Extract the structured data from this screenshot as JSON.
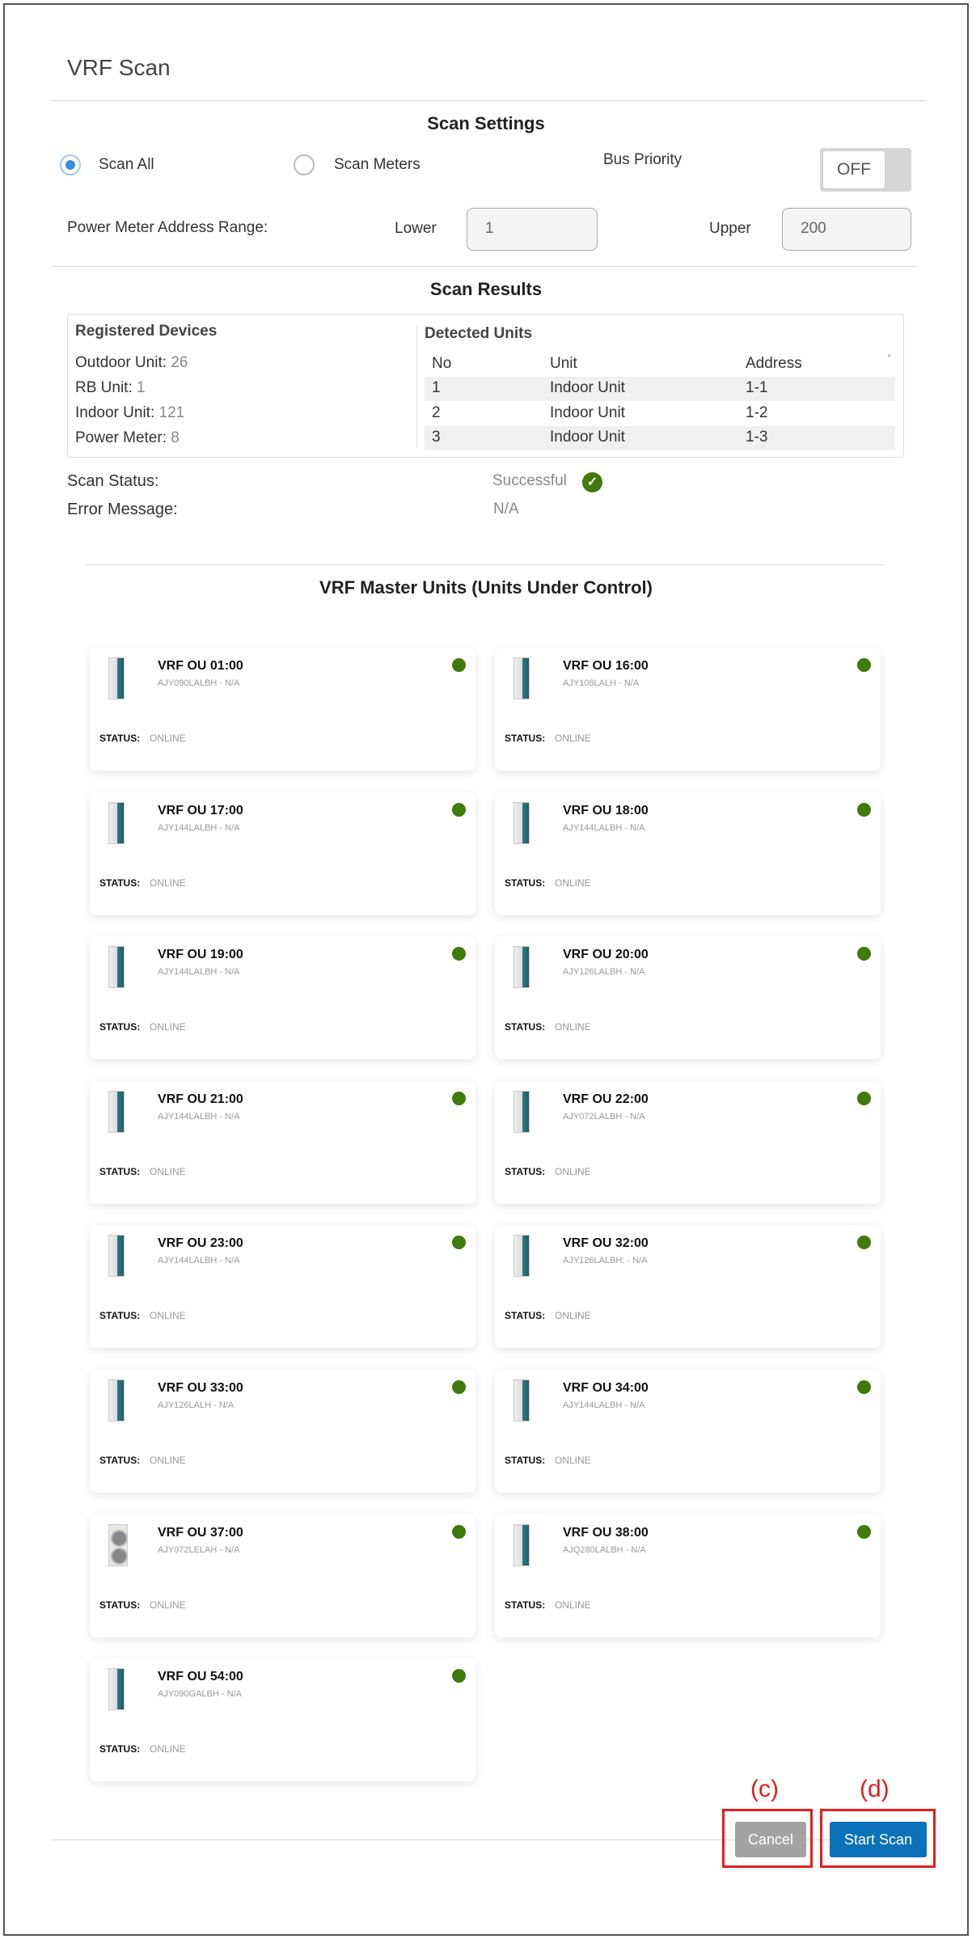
{
  "header": {
    "title": "VRF Scan"
  },
  "settings": {
    "heading": "Scan Settings",
    "scan_all": "Scan All",
    "scan_meters": "Scan Meters",
    "selected": "scan_all",
    "bus_priority_label": "Bus Priority",
    "bus_priority_value": "OFF",
    "range_label": "Power Meter Address Range:",
    "lower_label": "Lower",
    "lower_value": "1",
    "upper_label": "Upper",
    "upper_value": "200"
  },
  "results": {
    "heading": "Scan Results",
    "registered_title": "Registered Devices",
    "registered": [
      {
        "label": "Outdoor Unit:",
        "value": "26"
      },
      {
        "label": "RB Unit:",
        "value": "1"
      },
      {
        "label": "Indoor Unit:",
        "value": "121"
      },
      {
        "label": "Power Meter:",
        "value": "8"
      }
    ],
    "detected_title": "Detected Units",
    "columns": [
      "No",
      "Unit",
      "Address"
    ],
    "rows": [
      [
        "1",
        "Indoor Unit",
        "1-1"
      ],
      [
        "2",
        "Indoor Unit",
        "1-2"
      ],
      [
        "3",
        "Indoor Unit",
        "1-3"
      ]
    ],
    "status_label": "Scan Status:",
    "status_value": "Successful",
    "error_label": "Error Message:",
    "error_value": "N/A"
  },
  "units": {
    "heading": "VRF Master Units (Units Under Control)",
    "status_label": "STATUS:",
    "online_color": "#3f7a0a",
    "items": [
      {
        "name": "VRF OU 01:00",
        "model": "AJY090LALBH - N/A",
        "status": "ONLINE"
      },
      {
        "name": "VRF OU 16:00",
        "model": "AJY108LALH - N/A",
        "status": "ONLINE"
      },
      {
        "name": "VRF OU 17:00",
        "model": "AJY144LALBH - N/A",
        "status": "ONLINE"
      },
      {
        "name": "VRF OU 18:00",
        "model": "AJY144LALBH - N/A",
        "status": "ONLINE"
      },
      {
        "name": "VRF OU 19:00",
        "model": "AJY144LALBH - N/A",
        "status": "ONLINE"
      },
      {
        "name": "VRF OU 20:00",
        "model": "AJY126LALBH - N/A",
        "status": "ONLINE"
      },
      {
        "name": "VRF OU 21:00",
        "model": "AJY144LALBH - N/A",
        "status": "ONLINE"
      },
      {
        "name": "VRF OU 22:00",
        "model": "AJY072LALBH - N/A",
        "status": "ONLINE"
      },
      {
        "name": "VRF OU 23:00",
        "model": "AJY144LALBH - N/A",
        "status": "ONLINE"
      },
      {
        "name": "VRF OU 32:00",
        "model": "AJY126LALBH: - N/A",
        "status": "ONLINE"
      },
      {
        "name": "VRF OU 33:00",
        "model": "AJY126LALH - N/A",
        "status": "ONLINE"
      },
      {
        "name": "VRF OU 34:00",
        "model": "AJY144LALBH - N/A",
        "status": "ONLINE"
      },
      {
        "name": "VRF OU 37:00",
        "model": "AJY072LELAH - N/A",
        "status": "ONLINE",
        "image": "fan"
      },
      {
        "name": "VRF OU 38:00",
        "model": "AJQ280LALBH - N/A",
        "status": "ONLINE"
      },
      {
        "name": "VRF OU 54:00",
        "model": "AJY090GALBH - N/A",
        "status": "ONLINE"
      }
    ]
  },
  "footer": {
    "cancel": "Cancel",
    "start": "Start Scan",
    "cancel_annotation": "(c)",
    "start_annotation": "(d)",
    "cancel_color": "#a3a3a3",
    "start_color": "#0b72b9"
  }
}
